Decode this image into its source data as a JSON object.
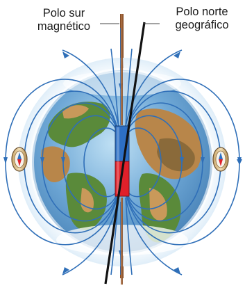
{
  "labels": {
    "magnetic_south_line1": "Polo sur",
    "magnetic_south_line2": "magnético",
    "geographic_north_line1": "Polo norte",
    "geographic_north_line2": "geográfico"
  },
  "colors": {
    "field_lines": "#2f6fb8",
    "magnet_north": "#2d6fc4",
    "magnet_south": "#e0202a",
    "magnetic_axis": "#9a5a2a",
    "geographic_axis": "#111111",
    "ocean": "#6fa8d6",
    "land": "#b8864a",
    "vegetation": "#5a8a3a"
  },
  "icons": [
    "compass-left-icon",
    "compass-right-icon"
  ]
}
